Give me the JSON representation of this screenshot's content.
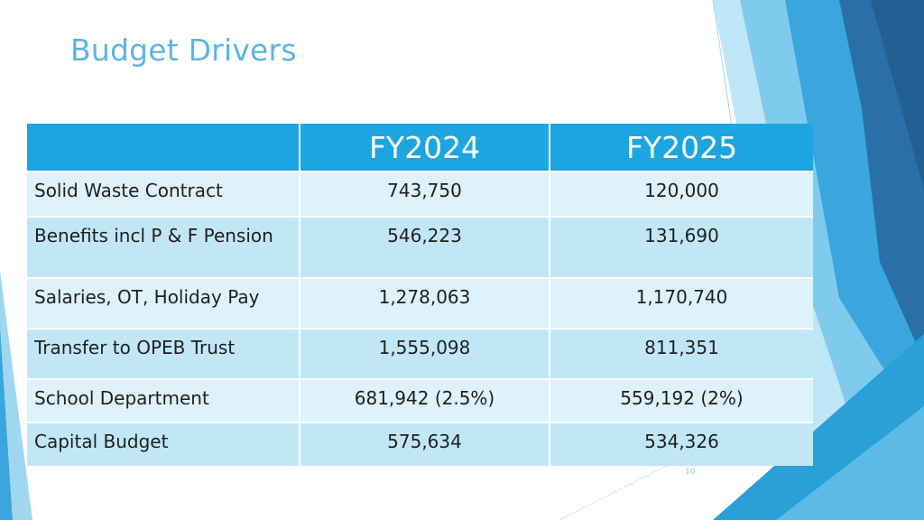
{
  "slide": {
    "title": "Budget Drivers",
    "page_number": "10"
  },
  "table": {
    "headers": [
      "",
      "FY2024",
      "FY2025"
    ],
    "rows": [
      {
        "label": "Solid Waste Contract",
        "fy2024": "743,750",
        "fy2025": "120,000"
      },
      {
        "label": "Benefits incl P & F Pension",
        "fy2024": "546,223",
        "fy2025": "131,690"
      },
      {
        "label": "Salaries, OT, Holiday Pay",
        "fy2024": "1,278,063",
        "fy2025": "1,170,740"
      },
      {
        "label": "Transfer to OPEB Trust",
        "fy2024": "1,555,098",
        "fy2025": "811,351"
      },
      {
        "label": "School Department",
        "fy2024": "681,942 (2.5%)",
        "fy2025": "559,192 (2%)"
      },
      {
        "label": "Capital Budget",
        "fy2024": "575,634",
        "fy2025": "534,326"
      }
    ]
  },
  "colors": {
    "title": "#5bb5e3",
    "header_fill": "#1ca5e0",
    "row_light": "#ddf2fb",
    "row_mid": "#c1e7f7",
    "accent_dark": "#2a6fa8",
    "accent_mid": "#2a9fd8",
    "accent_light": "#7fcbee"
  }
}
